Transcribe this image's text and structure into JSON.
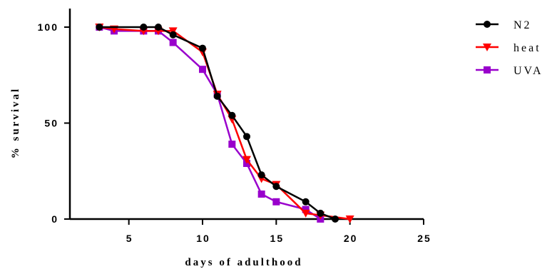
{
  "chart_data": {
    "type": "line",
    "xlabel": "days of adulthood",
    "ylabel": "% survival",
    "xlim": [
      1,
      25
    ],
    "ylim": [
      0,
      100
    ],
    "x_ticks": [
      5,
      10,
      15,
      20,
      25
    ],
    "y_ticks": [
      0,
      50,
      100
    ],
    "legend_position": "top-right",
    "grid": false,
    "series": [
      {
        "name": "N2",
        "color": "#000000",
        "marker": "circle",
        "x": [
          3,
          6,
          7,
          8,
          10,
          11,
          12,
          13,
          14,
          15,
          17,
          18,
          19
        ],
        "y": [
          100,
          100,
          100,
          96,
          89,
          64,
          54,
          43,
          23,
          17,
          9,
          3,
          0
        ]
      },
      {
        "name": "heat",
        "color": "#ff0000",
        "marker": "triangle-down",
        "x": [
          3,
          4,
          6,
          7,
          8,
          10,
          11,
          12,
          13,
          14,
          15,
          17,
          18,
          20
        ],
        "y": [
          100,
          99,
          98,
          98,
          98,
          87,
          65,
          52,
          31,
          21,
          18,
          3,
          2,
          0
        ]
      },
      {
        "name": "UVA",
        "color": "#9900cc",
        "marker": "square",
        "x": [
          3,
          4,
          6,
          7,
          8,
          10,
          11,
          12,
          13,
          14,
          15,
          17,
          18
        ],
        "y": [
          100,
          98,
          98,
          98,
          92,
          78,
          65,
          39,
          29,
          13,
          9,
          5,
          0
        ]
      }
    ]
  }
}
